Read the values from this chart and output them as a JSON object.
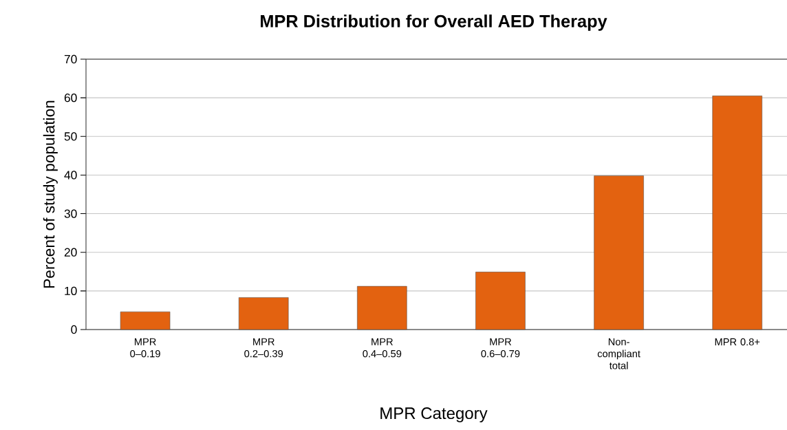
{
  "chart_data": {
    "type": "bar",
    "title": "MPR Distribution for Overall AED Therapy",
    "xlabel": "MPR Category",
    "ylabel": "Percent of study population",
    "categories": [
      "MPR 0–0.19",
      "MPR 0.2–0.39",
      "MPR 0.4–0.59",
      "MPR 0.6–0.79",
      "Non-compliant total",
      "MPR 0.8+"
    ],
    "values": [
      4.6,
      8.3,
      11.2,
      14.9,
      39.8,
      60.5
    ],
    "color": "#e36210",
    "ylim": [
      0,
      70
    ],
    "yticks": [
      0,
      10,
      20,
      30,
      40,
      50,
      60,
      70
    ],
    "grid": "y"
  }
}
